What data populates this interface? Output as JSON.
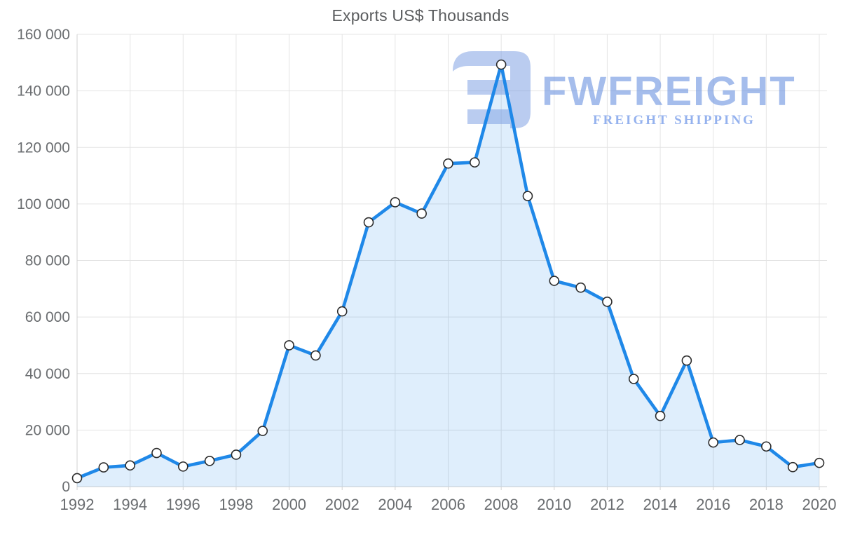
{
  "chart_data": {
    "type": "area",
    "title": "Exports US$ Thousands",
    "xlabel": "",
    "ylabel": "",
    "x": [
      1992,
      1993,
      1994,
      1995,
      1996,
      1997,
      1998,
      1999,
      2000,
      2001,
      2002,
      2003,
      2004,
      2005,
      2006,
      2007,
      2008,
      2009,
      2010,
      2011,
      2012,
      2013,
      2014,
      2015,
      2016,
      2017,
      2018,
      2019,
      2020
    ],
    "series": [
      {
        "name": "Exports US$ Thousands",
        "values": [
          3000,
          6800,
          7500,
          11900,
          7100,
          9100,
          11300,
          19700,
          50000,
          46400,
          62000,
          93500,
          100600,
          96600,
          114300,
          114700,
          149300,
          102800,
          72800,
          70400,
          65400,
          38100,
          25000,
          44600,
          15600,
          16500,
          14200,
          6900,
          8400
        ]
      }
    ],
    "ylim": [
      0,
      160000
    ],
    "ytick_values": [
      0,
      20000,
      40000,
      60000,
      80000,
      100000,
      120000,
      140000,
      160000
    ],
    "ytick_labels": [
      "0",
      "20 000",
      "40 000",
      "60 000",
      "80 000",
      "100 000",
      "120 000",
      "140 000",
      "160 000"
    ],
    "xtick_values": [
      1992,
      1994,
      1996,
      1998,
      2000,
      2002,
      2004,
      2006,
      2008,
      2010,
      2012,
      2014,
      2016,
      2018,
      2020
    ],
    "xtick_labels": [
      "1992",
      "1994",
      "1996",
      "1998",
      "2000",
      "2002",
      "2004",
      "2006",
      "2008",
      "2010",
      "2012",
      "2014",
      "2016",
      "2018",
      "2020"
    ],
    "grid": true,
    "legend_position": "none",
    "colors": {
      "line": "#1f88e8",
      "area_fill": "rgba(31,136,232,0.14)",
      "marker_fill": "#ffffff",
      "marker_stroke": "#2b2b2b",
      "grid": "#e4e4e4",
      "axis": "#d2d2d2",
      "tick_text": "#6a6d70",
      "title_text": "#5a5c5e"
    }
  },
  "watermark": {
    "brand": "FWFREIGHT",
    "tagline": "FREIGHT SHIPPING",
    "logo_color": "#6e95e0"
  }
}
